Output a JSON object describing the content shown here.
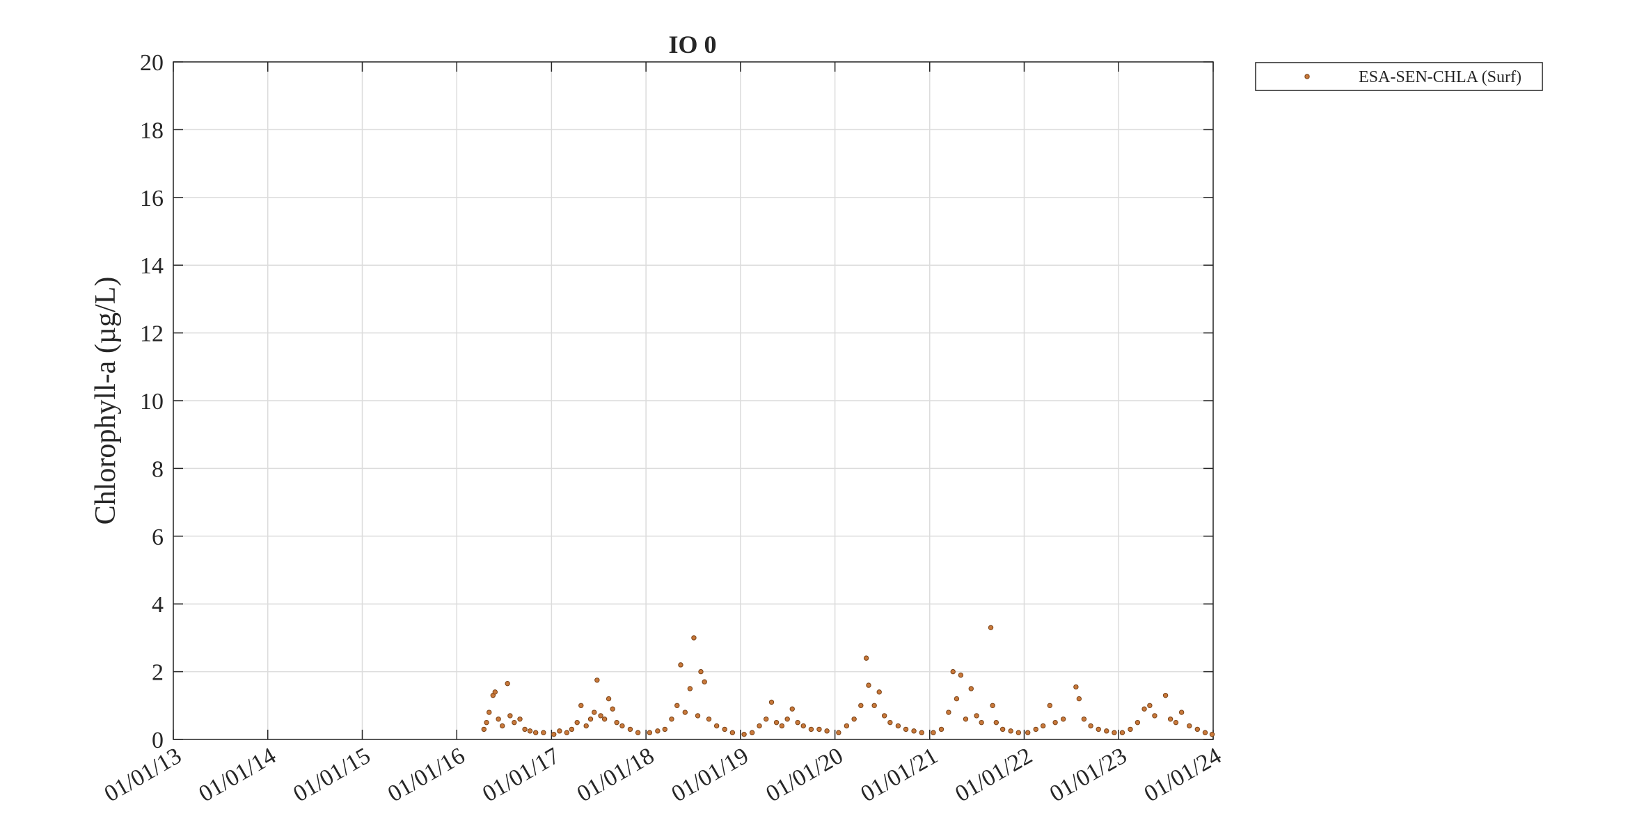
{
  "chart_data": {
    "type": "scatter",
    "title": "IO 0",
    "y_label": "Chlorophyll-a (µg/L)",
    "xlim": [
      "01/01/13",
      "01/01/24"
    ],
    "xticks": [
      "01/01/13",
      "01/01/14",
      "01/01/15",
      "01/01/16",
      "01/01/17",
      "01/01/18",
      "01/01/19",
      "01/01/20",
      "01/01/21",
      "01/01/22",
      "01/01/23",
      "01/01/24"
    ],
    "ylim": [
      0,
      20
    ],
    "yticks": [
      0,
      2,
      4,
      6,
      8,
      10,
      12,
      14,
      16,
      18,
      20
    ],
    "grid": true,
    "legend": "outside-top-right",
    "x": [
      "15/04/16",
      "25/04/16",
      "05/05/16",
      "20/05/16",
      "28/05/16",
      "10/06/16",
      "25/06/16",
      "15/07/16",
      "25/07/16",
      "10/08/16",
      "01/09/16",
      "20/09/16",
      "10/10/16",
      "01/11/16",
      "01/12/16",
      "10/01/17",
      "01/02/17",
      "01/03/17",
      "20/03/17",
      "10/04/17",
      "25/04/17",
      "15/05/17",
      "01/06/17",
      "15/06/17",
      "26/06/17",
      "10/07/17",
      "25/07/17",
      "10/08/17",
      "25/08/17",
      "10/09/17",
      "01/10/17",
      "01/11/17",
      "01/12/17",
      "15/01/18",
      "15/02/18",
      "15/03/18",
      "10/04/18",
      "01/05/18",
      "15/05/18",
      "01/06/18",
      "20/06/18",
      "05/07/18",
      "20/07/18",
      "01/08/18",
      "15/08/18",
      "01/09/18",
      "01/10/18",
      "01/11/18",
      "01/12/18",
      "15/01/19",
      "15/02/19",
      "15/03/19",
      "10/04/19",
      "01/05/19",
      "20/05/19",
      "10/06/19",
      "01/07/19",
      "20/07/19",
      "10/08/19",
      "01/09/19",
      "01/10/19",
      "01/11/19",
      "01/12/19",
      "15/01/20",
      "15/02/20",
      "15/03/20",
      "10/04/20",
      "01/05/20",
      "10/05/20",
      "01/06/20",
      "20/06/20",
      "10/07/20",
      "01/08/20",
      "01/09/20",
      "01/10/20",
      "01/11/20",
      "01/12/20",
      "15/01/21",
      "15/02/21",
      "15/03/21",
      "01/04/21",
      "15/04/21",
      "01/05/21",
      "20/05/21",
      "10/06/21",
      "01/07/21",
      "20/07/21",
      "25/08/21",
      "01/09/21",
      "15/09/21",
      "10/10/21",
      "10/11/21",
      "10/12/21",
      "15/01/22",
      "15/02/22",
      "15/03/22",
      "10/04/22",
      "01/05/22",
      "01/06/22",
      "20/07/22",
      "01/08/22",
      "20/08/22",
      "15/09/22",
      "15/10/22",
      "15/11/22",
      "15/12/22",
      "15/01/23",
      "15/02/23",
      "15/03/23",
      "10/04/23",
      "01/05/23",
      "20/05/23",
      "01/07/23",
      "20/07/23",
      "10/08/23",
      "01/09/23",
      "01/10/23",
      "01/11/23",
      "01/12/23",
      "28/12/23"
    ],
    "series": [
      {
        "name": "ESA-SEN-CHLA (Surf)",
        "color": "#c8783a",
        "values": [
          0.3,
          0.5,
          0.8,
          1.3,
          1.4,
          0.6,
          0.4,
          1.65,
          0.7,
          0.5,
          0.6,
          0.3,
          0.25,
          0.2,
          0.2,
          0.15,
          0.25,
          0.2,
          0.3,
          0.5,
          1.0,
          0.4,
          0.6,
          0.8,
          1.75,
          0.7,
          0.6,
          1.2,
          0.9,
          0.5,
          0.4,
          0.3,
          0.2,
          0.2,
          0.25,
          0.3,
          0.6,
          1.0,
          2.2,
          0.8,
          1.5,
          3.0,
          0.7,
          2.0,
          1.7,
          0.6,
          0.4,
          0.3,
          0.2,
          0.15,
          0.2,
          0.4,
          0.6,
          1.1,
          0.5,
          0.4,
          0.6,
          0.9,
          0.5,
          0.4,
          0.3,
          0.3,
          0.25,
          0.2,
          0.4,
          0.6,
          1.0,
          2.4,
          1.6,
          1.0,
          1.4,
          0.7,
          0.5,
          0.4,
          0.3,
          0.25,
          0.2,
          0.2,
          0.3,
          0.8,
          2.0,
          1.2,
          1.9,
          0.6,
          1.5,
          0.7,
          0.5,
          3.3,
          1.0,
          0.5,
          0.3,
          0.25,
          0.2,
          0.2,
          0.3,
          0.4,
          1.0,
          0.5,
          0.6,
          1.55,
          1.2,
          0.6,
          0.4,
          0.3,
          0.25,
          0.2,
          0.2,
          0.3,
          0.5,
          0.9,
          1.0,
          0.7,
          1.3,
          0.6,
          0.5,
          0.8,
          0.4,
          0.3,
          0.2,
          0.15
        ]
      }
    ]
  }
}
